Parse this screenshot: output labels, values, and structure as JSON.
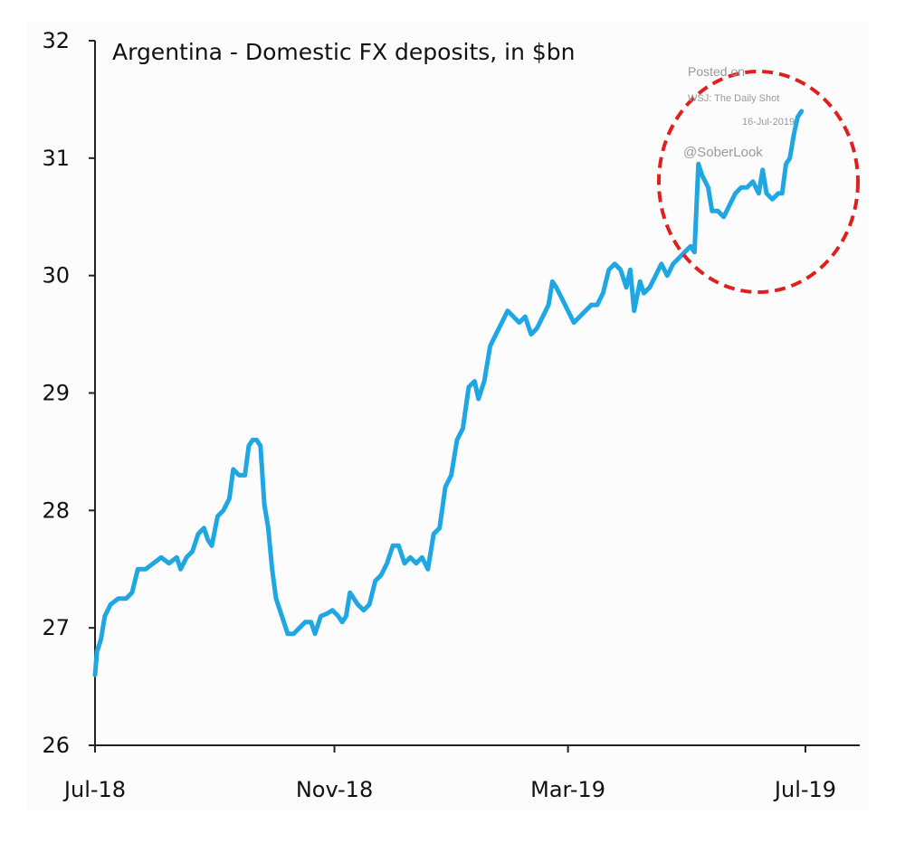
{
  "chart_data": {
    "type": "line",
    "title": "Argentina - Domestic FX deposits, in $bn",
    "xlabel": "",
    "ylabel": "",
    "ylim": [
      26,
      32
    ],
    "yticks": [
      26,
      27,
      28,
      29,
      30,
      31,
      32
    ],
    "xlim": [
      "2018-07-01",
      "2019-07-10"
    ],
    "xticks": [
      {
        "date": "2018-07-01",
        "label": "Jul-18"
      },
      {
        "date": "2018-11-01",
        "label": "Nov-18"
      },
      {
        "date": "2019-03-01",
        "label": "Mar-19"
      },
      {
        "date": "2019-07-01",
        "label": "Jul-19"
      }
    ],
    "grid": false,
    "legend": "none",
    "series_color": "#1fa7e3",
    "highlight_color": "#e02020",
    "series": [
      {
        "points": [
          [
            "2018-07-01",
            26.6
          ],
          [
            "2018-07-02",
            26.8
          ],
          [
            "2018-07-04",
            26.9
          ],
          [
            "2018-07-06",
            27.1
          ],
          [
            "2018-07-09",
            27.2
          ],
          [
            "2018-07-13",
            27.25
          ],
          [
            "2018-07-17",
            27.25
          ],
          [
            "2018-07-20",
            27.3
          ],
          [
            "2018-07-23",
            27.5
          ],
          [
            "2018-07-27",
            27.5
          ],
          [
            "2018-07-31",
            27.55
          ],
          [
            "2018-08-04",
            27.6
          ],
          [
            "2018-08-08",
            27.55
          ],
          [
            "2018-08-12",
            27.6
          ],
          [
            "2018-08-14",
            27.5
          ],
          [
            "2018-08-17",
            27.6
          ],
          [
            "2018-08-20",
            27.65
          ],
          [
            "2018-08-23",
            27.8
          ],
          [
            "2018-08-26",
            27.85
          ],
          [
            "2018-08-28",
            27.75
          ],
          [
            "2018-08-30",
            27.7
          ],
          [
            "2018-09-02",
            27.95
          ],
          [
            "2018-09-05",
            28.0
          ],
          [
            "2018-09-08",
            28.1
          ],
          [
            "2018-09-10",
            28.35
          ],
          [
            "2018-09-13",
            28.3
          ],
          [
            "2018-09-16",
            28.3
          ],
          [
            "2018-09-18",
            28.55
          ],
          [
            "2018-09-20",
            28.6
          ],
          [
            "2018-09-22",
            28.6
          ],
          [
            "2018-09-24",
            28.55
          ],
          [
            "2018-09-26",
            28.05
          ],
          [
            "2018-09-28",
            27.85
          ],
          [
            "2018-09-30",
            27.5
          ],
          [
            "2018-10-02",
            27.25
          ],
          [
            "2018-10-05",
            27.1
          ],
          [
            "2018-10-08",
            26.95
          ],
          [
            "2018-10-11",
            26.95
          ],
          [
            "2018-10-14",
            27.0
          ],
          [
            "2018-10-17",
            27.05
          ],
          [
            "2018-10-20",
            27.05
          ],
          [
            "2018-10-22",
            26.95
          ],
          [
            "2018-10-25",
            27.1
          ],
          [
            "2018-10-28",
            27.12
          ],
          [
            "2018-10-31",
            27.15
          ],
          [
            "2018-11-03",
            27.1
          ],
          [
            "2018-11-05",
            27.05
          ],
          [
            "2018-11-07",
            27.1
          ],
          [
            "2018-11-09",
            27.3
          ],
          [
            "2018-11-11",
            27.25
          ],
          [
            "2018-11-13",
            27.2
          ],
          [
            "2018-11-16",
            27.15
          ],
          [
            "2018-11-19",
            27.2
          ],
          [
            "2018-11-22",
            27.4
          ],
          [
            "2018-11-25",
            27.45
          ],
          [
            "2018-11-28",
            27.55
          ],
          [
            "2018-12-01",
            27.7
          ],
          [
            "2018-12-04",
            27.7
          ],
          [
            "2018-12-07",
            27.55
          ],
          [
            "2018-12-10",
            27.6
          ],
          [
            "2018-12-13",
            27.55
          ],
          [
            "2018-12-16",
            27.6
          ],
          [
            "2018-12-19",
            27.5
          ],
          [
            "2018-12-22",
            27.8
          ],
          [
            "2018-12-25",
            27.85
          ],
          [
            "2018-12-28",
            28.2
          ],
          [
            "2018-12-31",
            28.3
          ],
          [
            "2019-01-03",
            28.6
          ],
          [
            "2019-01-06",
            28.7
          ],
          [
            "2019-01-09",
            29.05
          ],
          [
            "2019-01-12",
            29.1
          ],
          [
            "2019-01-14",
            28.95
          ],
          [
            "2019-01-17",
            29.1
          ],
          [
            "2019-01-20",
            29.4
          ],
          [
            "2019-01-23",
            29.5
          ],
          [
            "2019-01-26",
            29.6
          ],
          [
            "2019-01-29",
            29.7
          ],
          [
            "2019-02-01",
            29.65
          ],
          [
            "2019-02-04",
            29.6
          ],
          [
            "2019-02-07",
            29.65
          ],
          [
            "2019-02-10",
            29.5
          ],
          [
            "2019-02-13",
            29.55
          ],
          [
            "2019-02-16",
            29.65
          ],
          [
            "2019-02-19",
            29.75
          ],
          [
            "2019-02-21",
            29.95
          ],
          [
            "2019-02-23",
            29.9
          ],
          [
            "2019-02-26",
            29.8
          ],
          [
            "2019-03-01",
            29.7
          ],
          [
            "2019-03-04",
            29.6
          ],
          [
            "2019-03-07",
            29.65
          ],
          [
            "2019-03-10",
            29.7
          ],
          [
            "2019-03-13",
            29.75
          ],
          [
            "2019-03-16",
            29.75
          ],
          [
            "2019-03-19",
            29.85
          ],
          [
            "2019-03-22",
            30.05
          ],
          [
            "2019-03-25",
            30.1
          ],
          [
            "2019-03-28",
            30.05
          ],
          [
            "2019-03-31",
            29.9
          ],
          [
            "2019-04-02",
            30.05
          ],
          [
            "2019-04-04",
            29.7
          ],
          [
            "2019-04-07",
            29.95
          ],
          [
            "2019-04-09",
            29.85
          ],
          [
            "2019-04-12",
            29.9
          ],
          [
            "2019-04-15",
            30.0
          ],
          [
            "2019-04-18",
            30.1
          ],
          [
            "2019-04-21",
            30.0
          ],
          [
            "2019-04-24",
            30.1
          ],
          [
            "2019-04-27",
            30.15
          ],
          [
            "2019-04-30",
            30.2
          ],
          [
            "2019-05-03",
            30.25
          ],
          [
            "2019-05-05",
            30.2
          ],
          [
            "2019-05-07",
            30.95
          ],
          [
            "2019-05-09",
            30.85
          ],
          [
            "2019-05-12",
            30.75
          ],
          [
            "2019-05-14",
            30.55
          ],
          [
            "2019-05-17",
            30.55
          ],
          [
            "2019-05-20",
            30.5
          ],
          [
            "2019-05-23",
            30.6
          ],
          [
            "2019-05-26",
            30.7
          ],
          [
            "2019-05-29",
            30.75
          ],
          [
            "2019-06-01",
            30.75
          ],
          [
            "2019-06-04",
            30.8
          ],
          [
            "2019-06-07",
            30.7
          ],
          [
            "2019-06-09",
            30.9
          ],
          [
            "2019-06-11",
            30.7
          ],
          [
            "2019-06-14",
            30.65
          ],
          [
            "2019-06-17",
            30.7
          ],
          [
            "2019-06-19",
            30.7
          ],
          [
            "2019-06-21",
            30.95
          ],
          [
            "2019-06-23",
            31.0
          ],
          [
            "2019-06-25",
            31.2
          ],
          [
            "2019-06-27",
            31.35
          ],
          [
            "2019-06-29",
            31.4
          ]
        ]
      }
    ]
  },
  "watermark": {
    "line1": "Posted on",
    "line2": "WSJ: The Daily Shot",
    "line3": "16-Jul-2019",
    "handle": "@SoberLook"
  }
}
